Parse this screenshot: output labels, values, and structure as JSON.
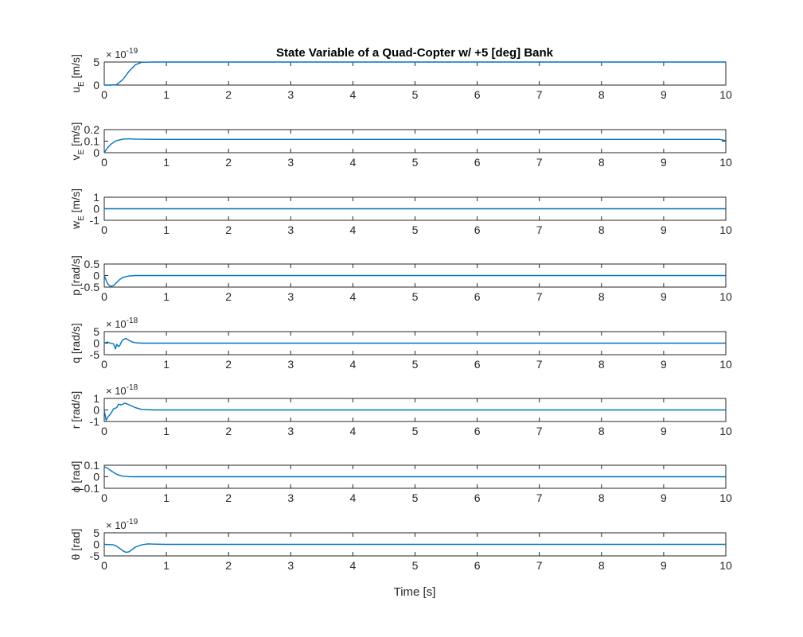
{
  "chart_data": {
    "type": "line",
    "title": "State Variable of a Quad-Copter w/ +5 [deg] Bank",
    "xlabel": "Time [s]",
    "xlim": [
      0,
      10
    ],
    "xticks": [
      "0",
      "1",
      "2",
      "3",
      "4",
      "5",
      "6",
      "7",
      "8",
      "9",
      "10"
    ],
    "line_color": "#0072BD",
    "grid": false,
    "subplots": [
      {
        "ylabel_main": "u",
        "ylabel_sub": "E",
        "ylabel_unit": "[m/s]",
        "ylim": [
          0,
          5
        ],
        "yticks": [
          "0",
          "5"
        ],
        "yticks_values": [
          0,
          5
        ],
        "exponent_base": "× 10",
        "exponent_power": "-19",
        "x": [
          0,
          0.1,
          0.2,
          0.3,
          0.4,
          0.5,
          0.6,
          0.8,
          1,
          2,
          4,
          6,
          8,
          10
        ],
        "y": [
          0,
          0,
          0.1,
          1.2,
          3.0,
          4.4,
          4.95,
          5.0,
          5.0,
          5.0,
          5.0,
          5.0,
          5.0,
          5.0
        ]
      },
      {
        "ylabel_main": "v",
        "ylabel_sub": "E",
        "ylabel_unit": "[m/s]",
        "ylim": [
          0,
          0.2
        ],
        "yticks": [
          "0",
          "0.1",
          "0.2"
        ],
        "yticks_values": [
          0,
          0.1,
          0.2
        ],
        "x": [
          0,
          0.05,
          0.1,
          0.15,
          0.2,
          0.3,
          0.4,
          0.5,
          0.7,
          1,
          2,
          4,
          6,
          8,
          9.9,
          10
        ],
        "y": [
          0,
          0.04,
          0.07,
          0.09,
          0.105,
          0.118,
          0.12,
          0.118,
          0.116,
          0.115,
          0.115,
          0.115,
          0.115,
          0.115,
          0.115,
          0.105
        ]
      },
      {
        "ylabel_main": "w",
        "ylabel_sub": "E",
        "ylabel_unit": "[m/s]",
        "ylim": [
          -1,
          1
        ],
        "yticks": [
          "-1",
          "0",
          "1"
        ],
        "yticks_values": [
          -1,
          0,
          1
        ],
        "x": [
          0,
          10
        ],
        "y": [
          0,
          0
        ]
      },
      {
        "ylabel_main": "p [rad/s]",
        "ylabel_sub": "",
        "ylabel_unit": "",
        "ylim": [
          -0.5,
          0.5
        ],
        "yticks": [
          "-0.5",
          "0",
          "0.5"
        ],
        "yticks_values": [
          -0.5,
          0,
          0.5
        ],
        "x": [
          0,
          0.03,
          0.06,
          0.1,
          0.15,
          0.2,
          0.25,
          0.3,
          0.4,
          0.5,
          0.7,
          1,
          2,
          4,
          6,
          8,
          10
        ],
        "y": [
          0,
          -0.2,
          -0.38,
          -0.47,
          -0.43,
          -0.3,
          -0.17,
          -0.08,
          -0.02,
          0,
          0,
          0,
          0,
          0,
          0,
          0,
          0
        ]
      },
      {
        "ylabel_main": "q [rad/s]",
        "ylabel_sub": "",
        "ylabel_unit": "",
        "ylim": [
          -5,
          5
        ],
        "yticks": [
          "-5",
          "0",
          "5"
        ],
        "yticks_values": [
          -5,
          0,
          5
        ],
        "exponent_base": "× 10",
        "exponent_power": "-18",
        "x": [
          0,
          0.05,
          0.1,
          0.15,
          0.18,
          0.2,
          0.23,
          0.25,
          0.28,
          0.3,
          0.35,
          0.4,
          0.45,
          0.5,
          0.6,
          0.8,
          1,
          2,
          4,
          6,
          8,
          10
        ],
        "y": [
          0,
          0.5,
          0,
          -0.3,
          -2.5,
          -0.5,
          -1.5,
          -1.0,
          0.8,
          1.5,
          2.0,
          1.2,
          0.5,
          0.2,
          0,
          0,
          0,
          0,
          0,
          0,
          0,
          0
        ]
      },
      {
        "ylabel_main": "r [rad/s]",
        "ylabel_sub": "",
        "ylabel_unit": "",
        "ylim": [
          -1,
          1
        ],
        "yticks": [
          "-1",
          "0",
          "1"
        ],
        "yticks_values": [
          -1,
          0,
          1
        ],
        "exponent_base": "× 10",
        "exponent_power": "-18",
        "x": [
          0,
          0.03,
          0.06,
          0.1,
          0.15,
          0.2,
          0.23,
          0.28,
          0.33,
          0.4,
          0.5,
          0.6,
          0.8,
          1,
          2,
          4,
          6,
          8,
          10
        ],
        "y": [
          0,
          -0.9,
          -0.6,
          -0.35,
          0.1,
          0.2,
          0.5,
          0.45,
          0.6,
          0.45,
          0.2,
          0.05,
          0,
          0,
          0,
          0,
          0,
          0,
          0
        ]
      },
      {
        "ylabel_main": "ϕ [rad]",
        "ylabel_sub": "",
        "ylabel_unit": "",
        "ylim": [
          -0.1,
          0.1
        ],
        "yticks": [
          "-0.1",
          "0",
          "0.1"
        ],
        "yticks_values": [
          -0.1,
          0,
          0.1
        ],
        "x": [
          0,
          0.05,
          0.1,
          0.15,
          0.2,
          0.25,
          0.3,
          0.4,
          0.5,
          0.7,
          1,
          2,
          4,
          6,
          8,
          10
        ],
        "y": [
          0.087,
          0.075,
          0.055,
          0.037,
          0.022,
          0.012,
          0.005,
          0.001,
          0,
          0,
          0,
          0,
          0,
          0,
          0,
          0
        ]
      },
      {
        "ylabel_main": "θ [rad]",
        "ylabel_sub": "",
        "ylabel_unit": "",
        "ylim": [
          -5,
          5
        ],
        "yticks": [
          "-5",
          "0",
          "5"
        ],
        "yticks_values": [
          -5,
          0,
          5
        ],
        "exponent_base": "× 10",
        "exponent_power": "-19",
        "x": [
          0,
          0.15,
          0.2,
          0.25,
          0.3,
          0.35,
          0.4,
          0.45,
          0.5,
          0.6,
          0.7,
          0.8,
          1,
          2,
          4,
          6,
          8,
          10
        ],
        "y": [
          0,
          -0.2,
          -0.8,
          -1.8,
          -2.8,
          -3.5,
          -3.2,
          -2.2,
          -1.2,
          -0.2,
          0.2,
          0.1,
          0,
          0,
          0,
          0,
          0,
          0
        ]
      }
    ]
  }
}
